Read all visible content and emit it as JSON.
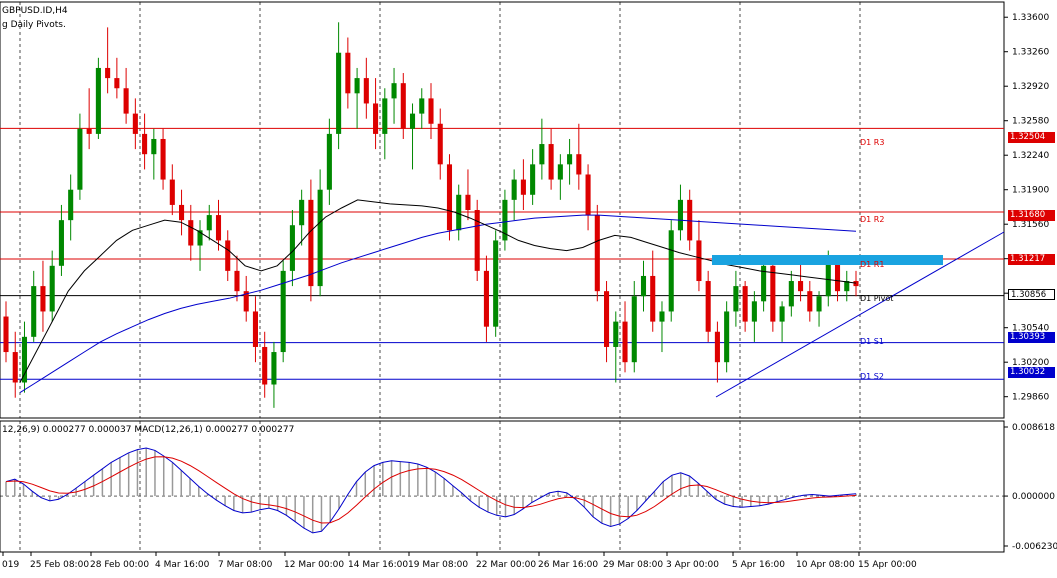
{
  "header": {
    "symbol_line": "GBPUSD.ID,H4",
    "indicator_line": "g Daily Pivots."
  },
  "macd": {
    "header": "12,26,9) 0.000277 0.000037 MACD(12,26,1) 0.000277 0.000277",
    "axis_labels": [
      "0.008618",
      "0.000000",
      "-0.006230"
    ],
    "values": [
      1.8,
      2.1,
      1.5,
      0.6,
      -0.2,
      -0.6,
      -0.4,
      0.2,
      1.0,
      1.8,
      2.6,
      3.4,
      4.2,
      4.8,
      5.4,
      5.8,
      6.0,
      5.7,
      5.0,
      4.2,
      3.2,
      2.2,
      1.2,
      0.3,
      -0.5,
      -1.2,
      -1.8,
      -2.1,
      -2.0,
      -1.7,
      -1.5,
      -1.8,
      -2.4,
      -3.2,
      -4.0,
      -4.6,
      -4.4,
      -3.2,
      -1.6,
      0.2,
      1.8,
      3.0,
      3.8,
      4.2,
      4.4,
      4.3,
      4.2,
      4.0,
      3.6,
      3.0,
      2.2,
      1.3,
      0.4,
      -0.6,
      -1.4,
      -2.0,
      -2.4,
      -2.6,
      -2.3,
      -1.6,
      -0.8,
      -0.2,
      0.4,
      0.6,
      0.4,
      -0.4,
      -1.4,
      -2.6,
      -3.4,
      -3.8,
      -3.5,
      -2.8,
      -1.8,
      -0.6,
      0.6,
      1.8,
      2.6,
      2.9,
      2.5,
      1.6,
      0.6,
      -0.4,
      -1.0,
      -1.3,
      -1.4,
      -1.3,
      -1.2,
      -1.0,
      -0.7,
      -0.4,
      -0.1,
      0.1,
      0.2,
      0.1,
      0.0,
      0.1,
      0.2,
      0.3
    ]
  },
  "price_axis": {
    "ticks": [
      "1.33600",
      "1.33260",
      "1.32920",
      "1.32580",
      "1.32240",
      "1.31900",
      "1.31560",
      "1.31220",
      "1.30880",
      "1.30540",
      "1.30200",
      "1.29860"
    ]
  },
  "pivots": [
    {
      "name": "D1 R3",
      "price_label": "1.32504",
      "color": "#dd0000"
    },
    {
      "name": "D1 R2",
      "price_label": "1.31680",
      "color": "#dd0000"
    },
    {
      "name": "D1 R1",
      "price_label": "1.31217",
      "color": "#dd0000"
    },
    {
      "name": "D1 Pivot",
      "price_label": "1.30856",
      "color": "#000000"
    },
    {
      "name": "D1 S1",
      "price_label": "1.30393",
      "color": "#0000cc"
    },
    {
      "name": "D1 S2",
      "price_label": "1.30032",
      "color": "#0000cc"
    }
  ],
  "time_axis": {
    "labels": [
      "019",
      "25 Feb 08:00",
      "28 Feb 00:00",
      "4 Mar 16:00",
      "7 Mar 08:00",
      "12 Mar 00:00",
      "14 Mar 16:00",
      "19 Mar 08:00",
      "22 Mar 00:00",
      "26 Mar 16:00",
      "29 Mar 08:00",
      "3 Apr 00:00",
      "5 Apr 16:00",
      "10 Apr 08:00",
      "15 Apr 00:00"
    ]
  },
  "chart_data": {
    "type": "candlestick",
    "symbol": "GBPUSD.ID",
    "timeframe": "H4",
    "ylim": [
      1.2965,
      1.3375
    ],
    "up_color": "#008800",
    "down_color": "#dd0000",
    "candles": [
      [
        1.3065,
        1.308,
        1.302,
        1.303
      ],
      [
        1.303,
        1.305,
        1.2985,
        1.3
      ],
      [
        1.3,
        1.306,
        1.299,
        1.3045
      ],
      [
        1.3045,
        1.311,
        1.304,
        1.3095
      ],
      [
        1.3095,
        1.312,
        1.305,
        1.307
      ],
      [
        1.307,
        1.313,
        1.306,
        1.3115
      ],
      [
        1.3115,
        1.3175,
        1.3105,
        1.316
      ],
      [
        1.316,
        1.3205,
        1.314,
        1.319
      ],
      [
        1.319,
        1.3265,
        1.318,
        1.325
      ],
      [
        1.325,
        1.329,
        1.323,
        1.3245
      ],
      [
        1.3245,
        1.332,
        1.324,
        1.331
      ],
      [
        1.331,
        1.335,
        1.3285,
        1.33
      ],
      [
        1.33,
        1.332,
        1.328,
        1.329
      ],
      [
        1.329,
        1.331,
        1.3255,
        1.3265
      ],
      [
        1.3265,
        1.328,
        1.323,
        1.3245
      ],
      [
        1.3245,
        1.3265,
        1.321,
        1.3225
      ],
      [
        1.3225,
        1.325,
        1.32,
        1.324
      ],
      [
        1.324,
        1.325,
        1.319,
        1.32
      ],
      [
        1.32,
        1.3215,
        1.3165,
        1.3175
      ],
      [
        1.3175,
        1.319,
        1.3145,
        1.316
      ],
      [
        1.316,
        1.3175,
        1.312,
        1.3135
      ],
      [
        1.3135,
        1.316,
        1.311,
        1.315
      ],
      [
        1.315,
        1.3175,
        1.314,
        1.3165
      ],
      [
        1.3165,
        1.318,
        1.313,
        1.314
      ],
      [
        1.314,
        1.315,
        1.31,
        1.311
      ],
      [
        1.311,
        1.3125,
        1.308,
        1.309
      ],
      [
        1.309,
        1.3105,
        1.306,
        1.307
      ],
      [
        1.307,
        1.3085,
        1.302,
        1.3035
      ],
      [
        1.3035,
        1.305,
        1.2985,
        1.2998
      ],
      [
        1.2998,
        1.304,
        1.2975,
        1.303
      ],
      [
        1.303,
        1.312,
        1.302,
        1.311
      ],
      [
        1.311,
        1.317,
        1.3095,
        1.3155
      ],
      [
        1.3155,
        1.319,
        1.3135,
        1.318
      ],
      [
        1.318,
        1.32,
        1.308,
        1.3095
      ],
      [
        1.3095,
        1.321,
        1.3085,
        1.319
      ],
      [
        1.319,
        1.326,
        1.3175,
        1.3245
      ],
      [
        1.3245,
        1.3355,
        1.323,
        1.3325
      ],
      [
        1.3325,
        1.334,
        1.327,
        1.3285
      ],
      [
        1.3285,
        1.331,
        1.325,
        1.33
      ],
      [
        1.33,
        1.332,
        1.326,
        1.3275
      ],
      [
        1.3275,
        1.33,
        1.323,
        1.3245
      ],
      [
        1.3245,
        1.329,
        1.322,
        1.328
      ],
      [
        1.328,
        1.331,
        1.3255,
        1.3295
      ],
      [
        1.3295,
        1.3305,
        1.324,
        1.325
      ],
      [
        1.325,
        1.3275,
        1.321,
        1.3265
      ],
      [
        1.3265,
        1.329,
        1.325,
        1.328
      ],
      [
        1.328,
        1.3295,
        1.324,
        1.3255
      ],
      [
        1.3255,
        1.327,
        1.32,
        1.3215
      ],
      [
        1.3215,
        1.3225,
        1.314,
        1.315
      ],
      [
        1.315,
        1.3195,
        1.314,
        1.3185
      ],
      [
        1.3185,
        1.321,
        1.316,
        1.317
      ],
      [
        1.317,
        1.318,
        1.31,
        1.311
      ],
      [
        1.311,
        1.3125,
        1.304,
        1.3055
      ],
      [
        1.3055,
        1.315,
        1.3045,
        1.314
      ],
      [
        1.314,
        1.319,
        1.313,
        1.318
      ],
      [
        1.318,
        1.321,
        1.316,
        1.32
      ],
      [
        1.32,
        1.322,
        1.317,
        1.3185
      ],
      [
        1.3185,
        1.323,
        1.3175,
        1.3215
      ],
      [
        1.3215,
        1.326,
        1.32,
        1.3235
      ],
      [
        1.3235,
        1.325,
        1.319,
        1.32
      ],
      [
        1.32,
        1.3225,
        1.318,
        1.3215
      ],
      [
        1.3215,
        1.324,
        1.3195,
        1.3225
      ],
      [
        1.3225,
        1.3255,
        1.319,
        1.3205
      ],
      [
        1.3205,
        1.3215,
        1.315,
        1.3165
      ],
      [
        1.3165,
        1.3175,
        1.308,
        1.309
      ],
      [
        1.309,
        1.31,
        1.302,
        1.3035
      ],
      [
        1.3035,
        1.307,
        1.3,
        1.306
      ],
      [
        1.306,
        1.308,
        1.301,
        1.302
      ],
      [
        1.302,
        1.31,
        1.301,
        1.3085
      ],
      [
        1.3085,
        1.312,
        1.307,
        1.3105
      ],
      [
        1.3105,
        1.313,
        1.305,
        1.306
      ],
      [
        1.306,
        1.308,
        1.303,
        1.307
      ],
      [
        1.307,
        1.316,
        1.306,
        1.315
      ],
      [
        1.315,
        1.3195,
        1.314,
        1.318
      ],
      [
        1.318,
        1.319,
        1.313,
        1.314
      ],
      [
        1.314,
        1.316,
        1.309,
        1.31
      ],
      [
        1.31,
        1.311,
        1.304,
        1.305
      ],
      [
        1.305,
        1.306,
        1.3,
        1.302
      ],
      [
        1.302,
        1.308,
        1.301,
        1.307
      ],
      [
        1.307,
        1.311,
        1.3055,
        1.3095
      ],
      [
        1.3095,
        1.31,
        1.305,
        1.306
      ],
      [
        1.306,
        1.309,
        1.304,
        1.308
      ],
      [
        1.308,
        1.3125,
        1.307,
        1.3115
      ],
      [
        1.3115,
        1.312,
        1.305,
        1.306
      ],
      [
        1.306,
        1.308,
        1.304,
        1.3075
      ],
      [
        1.3075,
        1.311,
        1.3065,
        1.31
      ],
      [
        1.31,
        1.312,
        1.308,
        1.309
      ],
      [
        1.309,
        1.31,
        1.306,
        1.307
      ],
      [
        1.307,
        1.309,
        1.3055,
        1.3085
      ],
      [
        1.3085,
        1.313,
        1.3075,
        1.312
      ],
      [
        1.312,
        1.3125,
        1.308,
        1.309
      ],
      [
        1.309,
        1.311,
        1.308,
        1.31
      ],
      [
        1.31,
        1.311,
        1.3085,
        1.3095
      ]
    ],
    "ma_slow": [
      1.299,
      1.3,
      1.301,
      1.302,
      1.303,
      1.304,
      1.3048,
      1.3055,
      1.3062,
      1.3068,
      1.3073,
      1.3077,
      1.308,
      1.3083,
      1.3087,
      1.3091,
      1.3096,
      1.3101,
      1.3106,
      1.3112,
      1.3118,
      1.3123,
      1.3128,
      1.3133,
      1.3138,
      1.3143,
      1.3147,
      1.315,
      1.3153,
      1.3156,
      1.3158,
      1.316,
      1.3162,
      1.3163,
      1.3164,
      1.3165,
      1.3165,
      1.3164,
      1.3163,
      1.3162,
      1.3161,
      1.316,
      1.3159,
      1.3158,
      1.3157,
      1.3156,
      1.3155,
      1.3154,
      1.3153,
      1.3152,
      1.3151,
      1.315,
      1.3149
    ],
    "ma_fast": [
      1.3,
      1.303,
      1.306,
      1.309,
      1.311,
      1.3125,
      1.314,
      1.315,
      1.3155,
      1.316,
      1.3158,
      1.315,
      1.314,
      1.313,
      1.3115,
      1.311,
      1.3115,
      1.313,
      1.3148,
      1.3163,
      1.3172,
      1.318,
      1.3178,
      1.3176,
      1.3175,
      1.3174,
      1.3172,
      1.3168,
      1.3162,
      1.3155,
      1.3148,
      1.314,
      1.3135,
      1.3132,
      1.313,
      1.3133,
      1.314,
      1.3145,
      1.3143,
      1.3138,
      1.3133,
      1.3128,
      1.3124,
      1.312,
      1.3116,
      1.3113,
      1.311,
      1.3108,
      1.3106,
      1.3104,
      1.3102,
      1.31,
      1.3098
    ]
  }
}
